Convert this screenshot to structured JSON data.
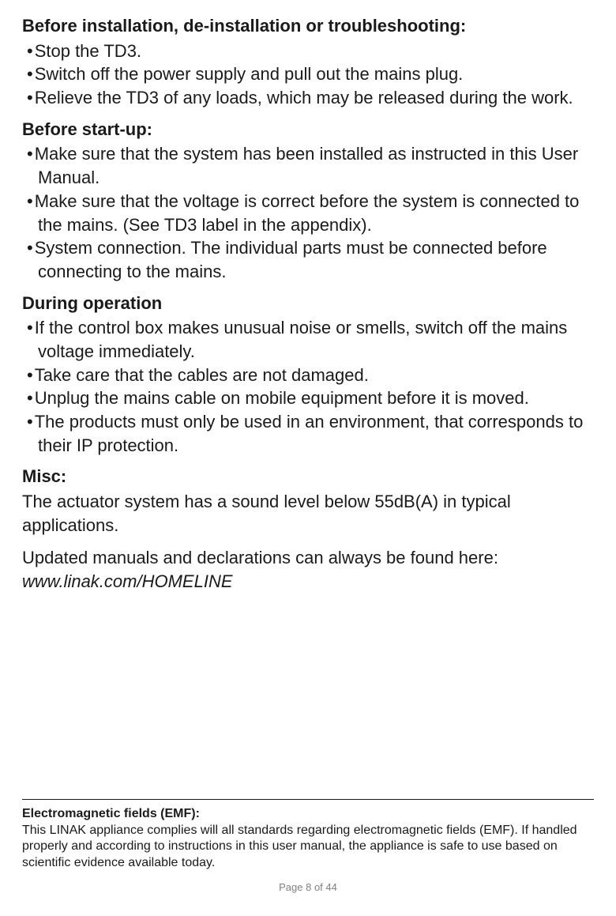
{
  "sections": [
    {
      "heading": "Before installation, de-installation or troubleshooting:",
      "bullets": [
        "Stop the TD3.",
        "Switch off the power supply and pull out the mains plug.",
        "Relieve the TD3 of any loads, which may be released during the work."
      ]
    },
    {
      "heading": "Before start-up:",
      "bullets": [
        "Make sure that the system has been installed as instructed in this User Manual.",
        "Make sure that the voltage is correct before the system is connected to the mains. (See TD3 label in the appendix).",
        "System connection. The individual parts must be connected before connecting to the mains."
      ]
    },
    {
      "heading": "During operation",
      "bullets": [
        "If the control box makes unusual noise or smells, switch off the mains voltage immediately.",
        "Take care that the cables are not damaged.",
        "Unplug the mains cable on mobile equipment before it is moved.",
        "The products must only be used in an environment, that corresponds to their IP protection."
      ]
    }
  ],
  "misc": {
    "heading": "Misc:",
    "body": "The actuator system has a sound level below 55dB(A) in typical applications."
  },
  "updates": {
    "line1": "Updated manuals and declarations can always be found here:",
    "line2_italic": "www.linak.com/HOMELINE"
  },
  "footer": {
    "heading": "Electromagnetic fields (EMF):",
    "body": "This LINAK appliance complies will all standards regarding electromagnetic fields (EMF). If handled properly and according to instructions in this user manual, the appliance is safe to use based on scientific evidence available today."
  },
  "page_label": "Page 8 of 44"
}
